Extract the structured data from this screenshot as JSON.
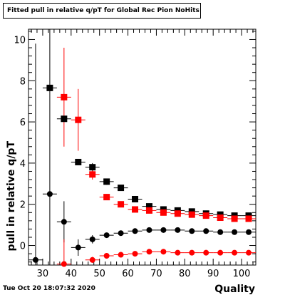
{
  "title": "Fitted pull in relative q/pT for Global Rec Pion NoHits",
  "footer_timestamp": "Tue Oct 20 18:07:32 2020",
  "chart_data": {
    "type": "scatter",
    "xlabel": "Quality",
    "ylabel": "pull in relative q/pT",
    "xlim": [
      25,
      105
    ],
    "ylim": [
      -0.95,
      10.5
    ],
    "xticks": [
      30,
      40,
      50,
      60,
      70,
      80,
      90,
      100
    ],
    "yticks": [
      0,
      2,
      4,
      6,
      8,
      10
    ],
    "grid": false,
    "x_half_width": 2.5,
    "colors": {
      "black": "#000000",
      "red": "#ff0000"
    },
    "series": [
      {
        "color": "#000000",
        "marker": "square",
        "x": [
          32.5,
          37.5,
          42.5,
          47.5,
          52.5,
          57.5,
          62.5,
          67.5,
          72.5,
          77.5,
          82.5,
          87.5,
          92.5,
          97.5,
          102.5
        ],
        "y": [
          7.65,
          6.15,
          4.05,
          3.8,
          3.1,
          2.8,
          2.25,
          1.9,
          1.75,
          1.7,
          1.65,
          1.55,
          1.5,
          1.45,
          1.45
        ],
        "yerr": [
          0,
          0,
          0,
          0.2,
          0.15,
          0.1,
          0.07,
          0.05,
          0.05,
          0.04,
          0.04,
          0.04,
          0.04,
          0.04,
          0.04
        ]
      },
      {
        "color": "#ff0000",
        "marker": "square",
        "x": [
          37.5,
          42.5,
          47.5,
          52.5,
          57.5,
          62.5,
          67.5,
          72.5,
          77.5,
          82.5,
          87.5,
          92.5,
          97.5,
          102.5
        ],
        "y": [
          7.2,
          6.1,
          3.45,
          2.35,
          2.0,
          1.75,
          1.7,
          1.6,
          1.55,
          1.5,
          1.45,
          1.35,
          1.3,
          1.3
        ],
        "yerr": [
          2.4,
          1.5,
          0.25,
          0.15,
          0.1,
          0.07,
          0.05,
          0.05,
          0.04,
          0.04,
          0.04,
          0.04,
          0.04,
          0.04
        ]
      },
      {
        "color": "#000000",
        "marker": "circle",
        "x": [
          27.5,
          32.5,
          37.5,
          42.5,
          47.5,
          52.5,
          57.5,
          62.5,
          67.5,
          72.5,
          77.5,
          82.5,
          87.5,
          92.5,
          97.5,
          102.5
        ],
        "y": [
          -0.7,
          2.5,
          1.15,
          -0.1,
          0.3,
          0.5,
          0.6,
          0.7,
          0.75,
          0.75,
          0.75,
          0.7,
          0.7,
          0.65,
          0.65,
          0.65
        ],
        "yerr": [
          10.5,
          8.1,
          1.0,
          0.4,
          0.2,
          0.1,
          0.07,
          0.06,
          0.05,
          0.05,
          0.04,
          0.04,
          0.04,
          0.04,
          0.04,
          0.04
        ]
      },
      {
        "color": "#ff0000",
        "marker": "circle",
        "x": [
          37.5,
          47.5,
          52.5,
          57.5,
          62.5,
          67.5,
          72.5,
          77.5,
          82.5,
          87.5,
          92.5,
          97.5,
          102.5
        ],
        "y": [
          -0.9,
          -0.7,
          -0.5,
          -0.45,
          -0.4,
          -0.3,
          -0.3,
          -0.35,
          -0.35,
          -0.35,
          -0.35,
          -0.35,
          -0.35
        ],
        "yerr": [
          1.2,
          0.15,
          0.1,
          0.07,
          0.06,
          0.05,
          0.05,
          0.04,
          0.04,
          0.04,
          0.04,
          0.04,
          0.04
        ]
      }
    ]
  }
}
